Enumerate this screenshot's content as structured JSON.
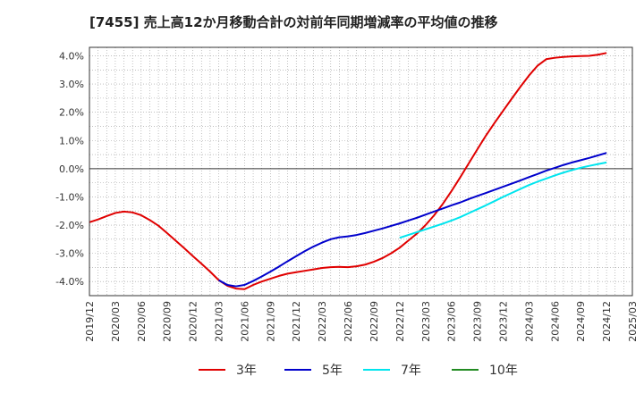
{
  "title": "[7455]  売上高12か月移動合計の対前年同期増減率の平均値の推移",
  "chart_data": {
    "type": "line",
    "x_ticks": [
      "2019/12",
      "2020/03",
      "2020/06",
      "2020/09",
      "2020/12",
      "2021/03",
      "2021/06",
      "2021/09",
      "2021/12",
      "2022/03",
      "2022/06",
      "2022/09",
      "2022/12",
      "2023/03",
      "2023/06",
      "2023/09",
      "2023/12",
      "2024/03",
      "2024/06",
      "2024/09",
      "2024/12",
      "2025/03"
    ],
    "y_ticks": [
      "4.0%",
      "3.0%",
      "2.0%",
      "1.0%",
      "0.0%",
      "-1.0%",
      "-2.0%",
      "-3.0%",
      "-4.0%"
    ],
    "ylim": [
      -4.5,
      4.3
    ],
    "grid": true,
    "legend_position": "bottom",
    "series": [
      {
        "name": "3年",
        "color": "#e00000",
        "points": [
          [
            "2019/12",
            -1.9
          ],
          [
            "2020/01",
            -1.8
          ],
          [
            "2020/02",
            -1.68
          ],
          [
            "2020/03",
            -1.57
          ],
          [
            "2020/04",
            -1.52
          ],
          [
            "2020/05",
            -1.55
          ],
          [
            "2020/06",
            -1.65
          ],
          [
            "2020/07",
            -1.82
          ],
          [
            "2020/08",
            -2.02
          ],
          [
            "2020/09",
            -2.28
          ],
          [
            "2020/10",
            -2.55
          ],
          [
            "2020/11",
            -2.82
          ],
          [
            "2020/12",
            -3.1
          ],
          [
            "2021/01",
            -3.37
          ],
          [
            "2021/02",
            -3.65
          ],
          [
            "2021/03",
            -3.95
          ],
          [
            "2021/04",
            -4.15
          ],
          [
            "2021/05",
            -4.25
          ],
          [
            "2021/06",
            -4.27
          ],
          [
            "2021/07",
            -4.12
          ],
          [
            "2021/08",
            -4.0
          ],
          [
            "2021/09",
            -3.9
          ],
          [
            "2021/10",
            -3.8
          ],
          [
            "2021/11",
            -3.72
          ],
          [
            "2021/12",
            -3.67
          ],
          [
            "2022/01",
            -3.62
          ],
          [
            "2022/02",
            -3.57
          ],
          [
            "2022/03",
            -3.52
          ],
          [
            "2022/04",
            -3.49
          ],
          [
            "2022/05",
            -3.48
          ],
          [
            "2022/06",
            -3.49
          ],
          [
            "2022/07",
            -3.46
          ],
          [
            "2022/08",
            -3.4
          ],
          [
            "2022/09",
            -3.3
          ],
          [
            "2022/10",
            -3.17
          ],
          [
            "2022/11",
            -3.0
          ],
          [
            "2022/12",
            -2.8
          ],
          [
            "2023/01",
            -2.55
          ],
          [
            "2023/02",
            -2.3
          ],
          [
            "2023/03",
            -2.0
          ],
          [
            "2023/04",
            -1.65
          ],
          [
            "2023/05",
            -1.25
          ],
          [
            "2023/06",
            -0.8
          ],
          [
            "2023/07",
            -0.32
          ],
          [
            "2023/08",
            0.18
          ],
          [
            "2023/09",
            0.68
          ],
          [
            "2023/10",
            1.17
          ],
          [
            "2023/11",
            1.62
          ],
          [
            "2023/12",
            2.05
          ],
          [
            "2024/01",
            2.48
          ],
          [
            "2024/02",
            2.9
          ],
          [
            "2024/03",
            3.3
          ],
          [
            "2024/04",
            3.65
          ],
          [
            "2024/05",
            3.88
          ],
          [
            "2024/06",
            3.93
          ],
          [
            "2024/07",
            3.96
          ],
          [
            "2024/08",
            3.98
          ],
          [
            "2024/09",
            3.99
          ],
          [
            "2024/10",
            4.0
          ],
          [
            "2024/11",
            4.04
          ],
          [
            "2024/12",
            4.1
          ]
        ]
      },
      {
        "name": "5年",
        "color": "#0000cc",
        "points": [
          [
            "2021/03",
            -3.95
          ],
          [
            "2021/04",
            -4.12
          ],
          [
            "2021/05",
            -4.17
          ],
          [
            "2021/06",
            -4.12
          ],
          [
            "2021/07",
            -3.98
          ],
          [
            "2021/08",
            -3.82
          ],
          [
            "2021/09",
            -3.65
          ],
          [
            "2021/10",
            -3.47
          ],
          [
            "2021/11",
            -3.28
          ],
          [
            "2021/12",
            -3.1
          ],
          [
            "2022/01",
            -2.92
          ],
          [
            "2022/02",
            -2.76
          ],
          [
            "2022/03",
            -2.62
          ],
          [
            "2022/04",
            -2.5
          ],
          [
            "2022/05",
            -2.43
          ],
          [
            "2022/06",
            -2.4
          ],
          [
            "2022/07",
            -2.35
          ],
          [
            "2022/08",
            -2.28
          ],
          [
            "2022/09",
            -2.2
          ],
          [
            "2022/10",
            -2.12
          ],
          [
            "2022/11",
            -2.03
          ],
          [
            "2022/12",
            -1.94
          ],
          [
            "2023/01",
            -1.84
          ],
          [
            "2023/02",
            -1.74
          ],
          [
            "2023/03",
            -1.63
          ],
          [
            "2023/04",
            -1.52
          ],
          [
            "2023/05",
            -1.41
          ],
          [
            "2023/06",
            -1.3
          ],
          [
            "2023/07",
            -1.2
          ],
          [
            "2023/08",
            -1.08
          ],
          [
            "2023/09",
            -0.97
          ],
          [
            "2023/10",
            -0.86
          ],
          [
            "2023/11",
            -0.75
          ],
          [
            "2023/12",
            -0.64
          ],
          [
            "2024/01",
            -0.53
          ],
          [
            "2024/02",
            -0.42
          ],
          [
            "2024/03",
            -0.3
          ],
          [
            "2024/04",
            -0.19
          ],
          [
            "2024/05",
            -0.07
          ],
          [
            "2024/06",
            0.03
          ],
          [
            "2024/07",
            0.13
          ],
          [
            "2024/08",
            0.22
          ],
          [
            "2024/09",
            0.3
          ],
          [
            "2024/10",
            0.38
          ],
          [
            "2024/11",
            0.47
          ],
          [
            "2024/12",
            0.56
          ]
        ]
      },
      {
        "name": "7年",
        "color": "#00e5ee",
        "points": [
          [
            "2022/12",
            -2.45
          ],
          [
            "2023/01",
            -2.35
          ],
          [
            "2023/02",
            -2.25
          ],
          [
            "2023/03",
            -2.15
          ],
          [
            "2023/04",
            -2.05
          ],
          [
            "2023/05",
            -1.95
          ],
          [
            "2023/06",
            -1.84
          ],
          [
            "2023/07",
            -1.72
          ],
          [
            "2023/08",
            -1.58
          ],
          [
            "2023/09",
            -1.44
          ],
          [
            "2023/10",
            -1.3
          ],
          [
            "2023/11",
            -1.15
          ],
          [
            "2023/12",
            -1.0
          ],
          [
            "2024/01",
            -0.86
          ],
          [
            "2024/02",
            -0.72
          ],
          [
            "2024/03",
            -0.58
          ],
          [
            "2024/04",
            -0.46
          ],
          [
            "2024/05",
            -0.35
          ],
          [
            "2024/06",
            -0.24
          ],
          [
            "2024/07",
            -0.14
          ],
          [
            "2024/08",
            -0.05
          ],
          [
            "2024/09",
            0.03
          ],
          [
            "2024/10",
            0.1
          ],
          [
            "2024/11",
            0.16
          ],
          [
            "2024/12",
            0.22
          ]
        ]
      },
      {
        "name": "10年",
        "color": "#228b22",
        "points": []
      }
    ]
  }
}
